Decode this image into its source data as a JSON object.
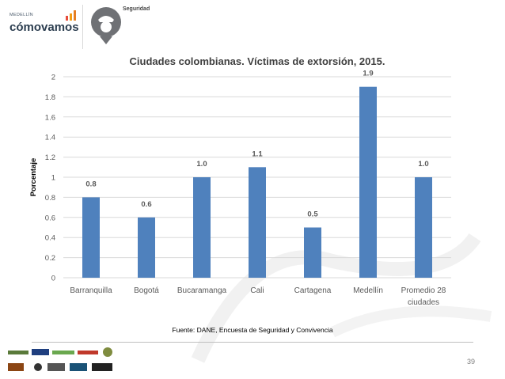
{
  "header": {
    "brand_small": "MEDELLÍN",
    "brand_name": "cómovamos",
    "topic": "Seguridad"
  },
  "chart_data": {
    "type": "bar",
    "title": "Ciudades colombianas. Víctimas de extorsión, 2015.",
    "xlabel": "",
    "ylabel": "Porcentaje",
    "ylim": [
      0,
      2
    ],
    "yticks": [
      0,
      0.2,
      0.4,
      0.6,
      0.8,
      1,
      1.2,
      1.4,
      1.6,
      1.8,
      2
    ],
    "ytick_labels": [
      "0",
      "0.2",
      "0.4",
      "0.6",
      "0.8",
      "1",
      "1.2",
      "1.4",
      "1.6",
      "1.8",
      "2"
    ],
    "categories": [
      "Barranquilla",
      "Bogotá",
      "Bucaramanga",
      "Cali",
      "Cartagena",
      "Medellín",
      "Promedio 28 ciudades"
    ],
    "category_lines": [
      [
        "Barranquilla"
      ],
      [
        "Bogotá"
      ],
      [
        "Bucaramanga"
      ],
      [
        "Cali"
      ],
      [
        "Cartagena"
      ],
      [
        "Medellín"
      ],
      [
        "Promedio 28",
        "ciudades"
      ]
    ],
    "values": [
      0.8,
      0.6,
      1.0,
      1.1,
      0.5,
      1.9,
      1.0
    ],
    "data_labels": [
      "0.8",
      "0.6",
      "1.0",
      "1.1",
      "0.5",
      "1.9",
      "1.0"
    ],
    "grid": true,
    "legend": "none",
    "bar_color": "#4f81bd"
  },
  "footer": {
    "source": "Fuente: DANE, Encuesta de Seguridad y Convivencia",
    "page_number": "39"
  },
  "colors": {
    "grid": "#d9d9d9",
    "axis_text": "#595959",
    "title_text": "#404040"
  }
}
